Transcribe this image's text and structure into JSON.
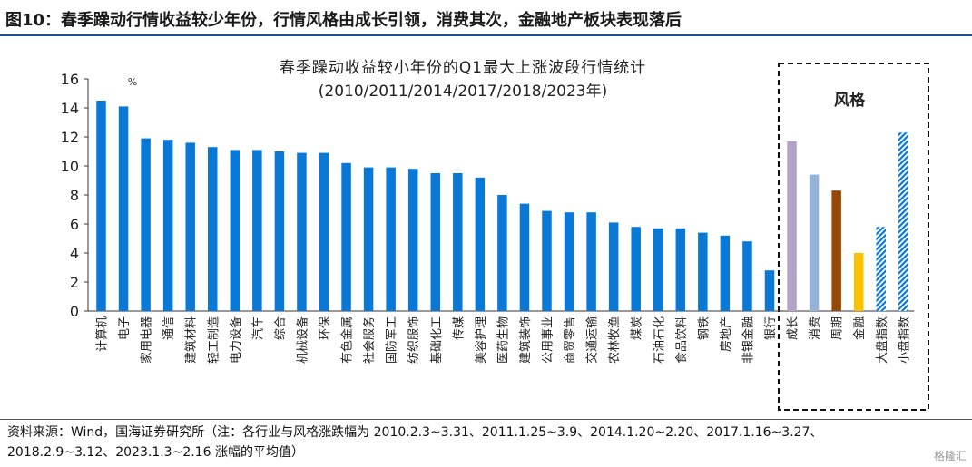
{
  "header": {
    "title": "图10：春季躁动行情收益较少年份，行情风格由成长引领，消费其次，金融地产板块表现落后"
  },
  "chart_data": {
    "type": "bar",
    "title": "春季躁动收益较小年份的Q1最大上涨波段行情统计",
    "subtitle": "(2010/2011/2014/2017/2018/2023年)",
    "unit_label": "%",
    "style_box_label": "风格",
    "ylim": [
      0,
      16
    ],
    "yticks": [
      0,
      2,
      4,
      6,
      8,
      10,
      12,
      14,
      16
    ],
    "grid": false,
    "industries": {
      "categories": [
        "计算机",
        "电子",
        "家用电器",
        "通信",
        "建筑材料",
        "轻工制造",
        "电力设备",
        "汽车",
        "综合",
        "机械设备",
        "环保",
        "有色金属",
        "社会服务",
        "国防军工",
        "纺织服饰",
        "基础化工",
        "传媒",
        "美容护理",
        "医药生物",
        "建筑装饰",
        "公用事业",
        "商贸零售",
        "交通运输",
        "农林牧渔",
        "煤炭",
        "石油石化",
        "食品饮料",
        "钢铁",
        "房地产",
        "非银金融",
        "银行"
      ],
      "values": [
        14.5,
        14.1,
        11.9,
        11.8,
        11.6,
        11.3,
        11.1,
        11.1,
        11.0,
        10.9,
        10.9,
        10.2,
        9.9,
        9.9,
        9.8,
        9.5,
        9.5,
        9.2,
        8.0,
        7.4,
        6.9,
        6.8,
        6.8,
        6.1,
        5.8,
        5.7,
        5.7,
        5.4,
        5.2,
        4.8,
        2.8
      ],
      "color": "#0a78d7"
    },
    "styles": {
      "categories": [
        "成长",
        "消费",
        "周期",
        "金融",
        "大盘指数",
        "小盘指数"
      ],
      "values": [
        11.7,
        9.4,
        8.3,
        4.0,
        5.8,
        12.3
      ],
      "colors": [
        "#b3a2c7",
        "#95b3d7",
        "#974706",
        "#ffc000",
        "#0a78d7",
        "#0a78d7"
      ],
      "hatched": [
        false,
        false,
        false,
        false,
        true,
        true
      ]
    }
  },
  "source_note": {
    "line1": "资料来源：Wind，国海证券研究所（注：各行业与风格涨跌幅为 2010.2.3~3.31、2011.1.25~3.9、2014.1.20~2.20、2017.1.16~3.27、",
    "line2": "2018.2.9~3.12、2023.1.3~2.16 涨幅的平均值）"
  },
  "watermark": "格隆汇"
}
